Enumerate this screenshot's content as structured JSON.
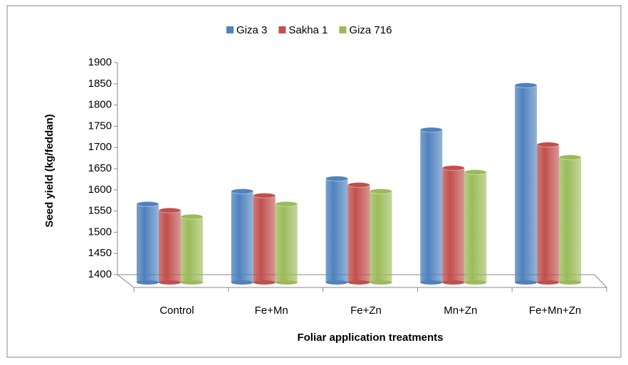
{
  "chart_data": {
    "type": "bar",
    "x_label": "Foliar application  treatments",
    "y_label": "Seed yield (kg/feddan)",
    "categories": [
      "Control",
      "Fe+Mn",
      "Fe+Zn",
      "Mn+Zn",
      "Fe+Mn+Zn"
    ],
    "series": [
      {
        "name": "Giza 3",
        "color": "#4f81bd",
        "values": [
          1585,
          1615,
          1645,
          1760,
          1865
        ]
      },
      {
        "name": "Sakha 1",
        "color": "#c0504d",
        "values": [
          1570,
          1605,
          1630,
          1670,
          1725
        ]
      },
      {
        "name": "Giza 716",
        "color": "#9bbb59",
        "values": [
          1555,
          1585,
          1615,
          1660,
          1695
        ]
      }
    ],
    "ylim": [
      1400,
      1900
    ],
    "yticks": [
      1400,
      1450,
      1500,
      1550,
      1600,
      1650,
      1700,
      1750,
      1800,
      1850,
      1900
    ],
    "legend": "top"
  }
}
